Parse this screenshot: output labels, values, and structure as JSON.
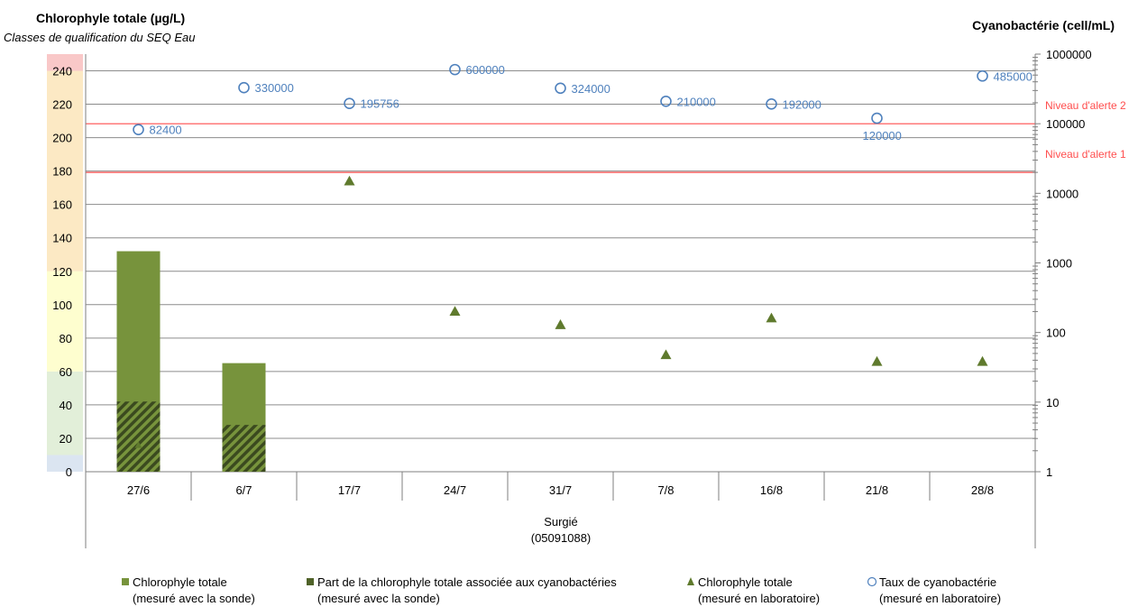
{
  "chart_data": {
    "type": "bar",
    "title_left": "Chlorophyle totale (µg/L)",
    "subtitle_left": "Classes de qualification du SEQ Eau",
    "title_right": "Cyanobactérie  (cell/mL)",
    "categories": [
      "27/6",
      "6/7",
      "17/7",
      "24/7",
      "31/7",
      "7/8",
      "16/8",
      "21/8",
      "28/8"
    ],
    "xlabel_line1": "Surgié",
    "xlabel_line2": "(05091088)",
    "y_left": {
      "min": 0,
      "max": 250,
      "ticks": [
        0,
        20,
        40,
        60,
        80,
        100,
        120,
        140,
        160,
        180,
        200,
        220,
        240
      ]
    },
    "y_right": {
      "scale": "log",
      "min": 1,
      "max": 1000000,
      "ticks": [
        1,
        10,
        100,
        1000,
        10000,
        100000,
        1000000
      ],
      "tick_labels": [
        "1",
        "10",
        "100",
        "1000",
        "10000",
        "100000",
        "1000000"
      ]
    },
    "quality_classes": [
      {
        "from": 0,
        "to": 10,
        "color": "#dbe5f1"
      },
      {
        "from": 10,
        "to": 60,
        "color": "#e2efd9"
      },
      {
        "from": 60,
        "to": 120,
        "color": "#fefecf"
      },
      {
        "from": 120,
        "to": 240,
        "color": "#fce9c4"
      },
      {
        "from": 240,
        "to": 250,
        "color": "#f9c8c8"
      }
    ],
    "alert_lines": [
      {
        "label": "Niveau d'alerte 2",
        "value": 100000,
        "color": "#ff4d4d"
      },
      {
        "label": "Niveau d'alerte 1",
        "value": 20000,
        "color": "#ff4d4d"
      }
    ],
    "series": [
      {
        "name": "Chlorophyle totale (mesuré avec la sonde)",
        "kind": "bar",
        "axis": "left",
        "color": "#77933c",
        "values": [
          132,
          65,
          null,
          null,
          null,
          null,
          null,
          null,
          null
        ]
      },
      {
        "name": "Part de la chlorophyle totale associée aux cyanobactéries (mesuré avec la sonde)",
        "kind": "bar-hatched",
        "axis": "left",
        "color": "#4f6228",
        "values": [
          42,
          28,
          null,
          null,
          null,
          null,
          null,
          null,
          null
        ]
      },
      {
        "name": "Chlorophyle totale (mesuré en laboratoire)",
        "kind": "triangle",
        "axis": "left",
        "color": "#5f7a2d",
        "values": [
          16,
          null,
          174,
          96,
          88,
          70,
          92,
          66,
          null
        ]
      },
      {
        "name": "Taux de cyanobactérie (mesuré en laboratoire)",
        "kind": "circle",
        "axis": "right",
        "color": "#4f81bd",
        "values": [
          82400,
          330000,
          195756,
          600000,
          324000,
          210000,
          192000,
          120000,
          485000
        ],
        "labels": [
          "82400",
          "330000",
          "195756",
          "600000",
          "324000",
          "210000",
          "192000",
          "120000",
          "485000"
        ]
      }
    ],
    "lab_chloro_extra": [
      {
        "category": "28/8",
        "value": 66
      }
    ],
    "legend": [
      {
        "marker": "square",
        "color": "#77933c",
        "line1": "Chlorophyle totale",
        "line2": "(mesuré avec la sonde)"
      },
      {
        "marker": "square",
        "color": "#4f6228",
        "line1": "Part de la chlorophyle totale associée aux cyanobactéries",
        "line2": "(mesuré avec la sonde)"
      },
      {
        "marker": "triangle",
        "color": "#5f7a2d",
        "line1": "Chlorophyle totale",
        "line2": "(mesuré en laboratoire)"
      },
      {
        "marker": "circle",
        "color": "#4f81bd",
        "line1": "Taux de cyanobactérie",
        "line2": "(mesuré en laboratoire)"
      }
    ],
    "grid": true
  }
}
